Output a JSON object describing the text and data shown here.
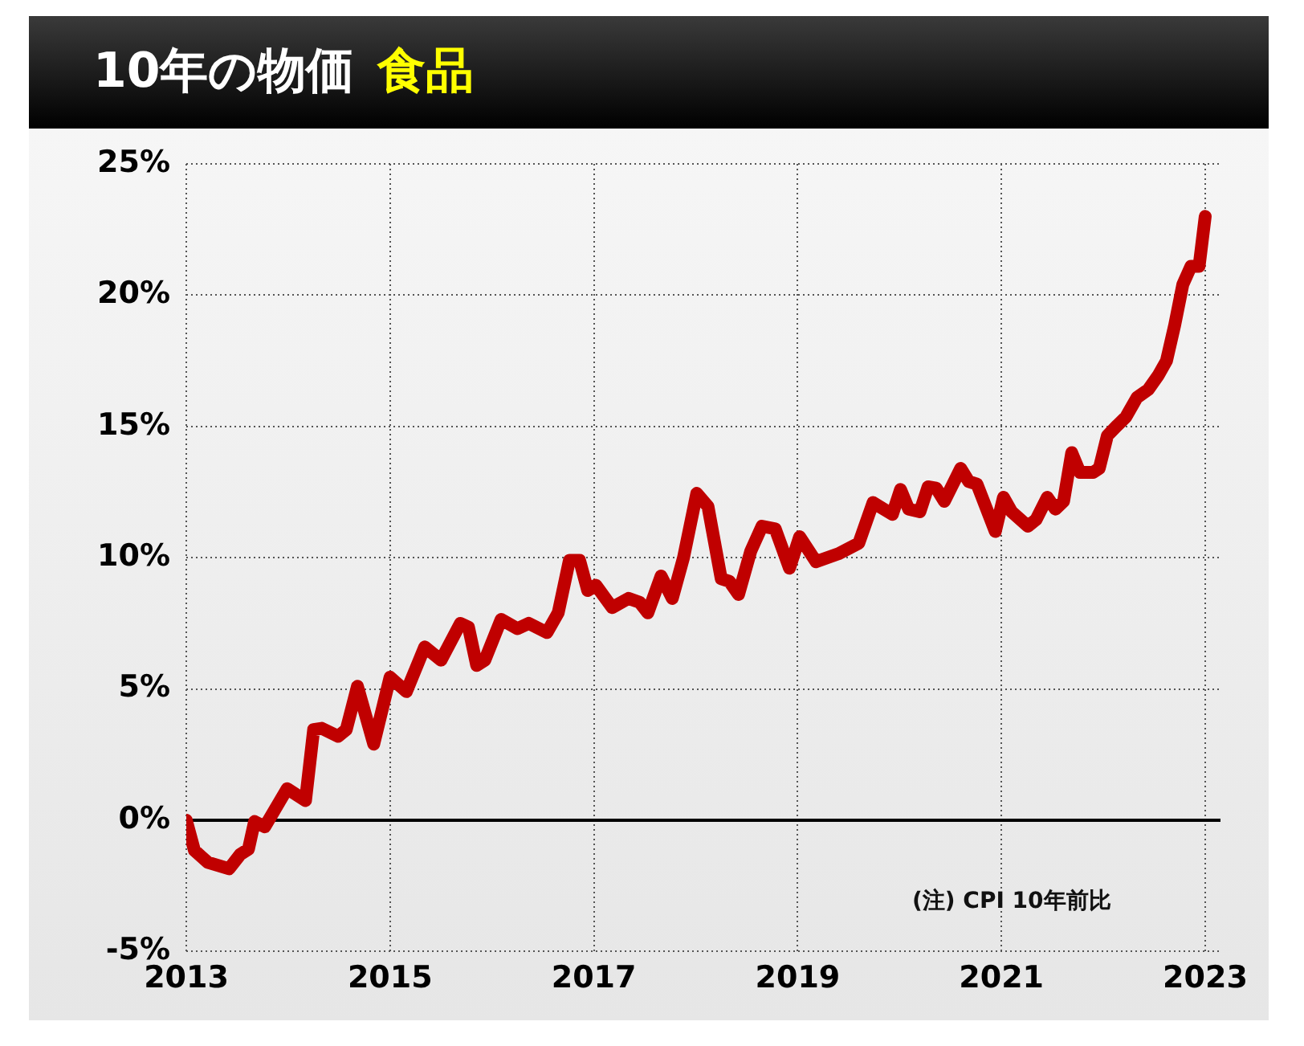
{
  "chart_data": {
    "type": "line",
    "title": "10年の物価",
    "subtitle": "食品",
    "annotations": [
      "(注) CPI 10年前比"
    ],
    "xlim": [
      2013,
      2023.15
    ],
    "xticks": [
      2013,
      2015,
      2017,
      2019,
      2021,
      2023
    ],
    "ylim": [
      -5,
      25
    ],
    "yticks": [
      {
        "value": -5,
        "label": "-5%"
      },
      {
        "value": 0,
        "label": "0%"
      },
      {
        "value": 5,
        "label": "5%"
      },
      {
        "value": 10,
        "label": "10%"
      },
      {
        "value": 15,
        "label": "15%"
      },
      {
        "value": 20,
        "label": "20%"
      },
      {
        "value": 25,
        "label": "25%"
      }
    ],
    "grid": true,
    "legend": false,
    "marker": "none",
    "line_style": "solid",
    "ref_lines": [
      {
        "axis": "y",
        "value": 0,
        "color": "#000000",
        "line_style": "solid"
      }
    ],
    "series": [
      {
        "color": "#c00000",
        "x": [
          2013.0,
          2013.08,
          2013.21,
          2013.42,
          2013.53,
          2013.61,
          2013.67,
          2013.77,
          2013.99,
          2014.17,
          2014.25,
          2014.33,
          2014.49,
          2014.57,
          2014.68,
          2014.84,
          2015.0,
          2015.16,
          2015.34,
          2015.5,
          2015.69,
          2015.77,
          2015.85,
          2015.93,
          2016.09,
          2016.25,
          2016.36,
          2016.54,
          2016.65,
          2016.76,
          2016.86,
          2016.94,
          2017.02,
          2017.18,
          2017.34,
          2017.45,
          2017.53,
          2017.66,
          2017.77,
          2017.88,
          2018.01,
          2018.12,
          2018.25,
          2018.33,
          2018.42,
          2018.54,
          2018.65,
          2018.78,
          2018.92,
          2019.02,
          2019.18,
          2019.4,
          2019.6,
          2019.74,
          2019.93,
          2020.01,
          2020.09,
          2020.2,
          2020.28,
          2020.36,
          2020.44,
          2020.6,
          2020.68,
          2020.76,
          2020.94,
          2021.02,
          2021.1,
          2021.26,
          2021.34,
          2021.45,
          2021.53,
          2021.61,
          2021.69,
          2021.77,
          2021.9,
          2021.96,
          2022.04,
          2022.14,
          2022.22,
          2022.33,
          2022.44,
          2022.54,
          2022.62,
          2022.7,
          2022.78,
          2022.86,
          2022.94,
          2023.0
        ],
        "values": [
          0,
          -1.15,
          -1.6,
          -1.85,
          -1.3,
          -1.1,
          -0.05,
          -0.25,
          1.2,
          0.75,
          3.45,
          3.5,
          3.2,
          3.45,
          5.1,
          2.9,
          5.45,
          4.9,
          6.6,
          6.1,
          7.5,
          7.35,
          5.9,
          6.1,
          7.65,
          7.3,
          7.5,
          7.15,
          7.9,
          9.9,
          9.9,
          8.75,
          8.95,
          8.1,
          8.45,
          8.3,
          7.9,
          9.3,
          8.45,
          10.0,
          12.45,
          11.95,
          9.2,
          9.1,
          8.6,
          10.25,
          11.2,
          11.1,
          9.6,
          10.8,
          9.85,
          10.15,
          10.55,
          12.1,
          11.65,
          12.6,
          11.85,
          11.75,
          12.7,
          12.65,
          12.15,
          13.4,
          12.9,
          12.8,
          11.0,
          12.3,
          11.75,
          11.2,
          11.45,
          12.3,
          11.85,
          12.15,
          14.0,
          13.25,
          13.25,
          13.4,
          14.65,
          15.05,
          15.35,
          16.1,
          16.4,
          16.95,
          17.5,
          18.85,
          20.4,
          21.1,
          21.1,
          23.0
        ]
      }
    ]
  }
}
